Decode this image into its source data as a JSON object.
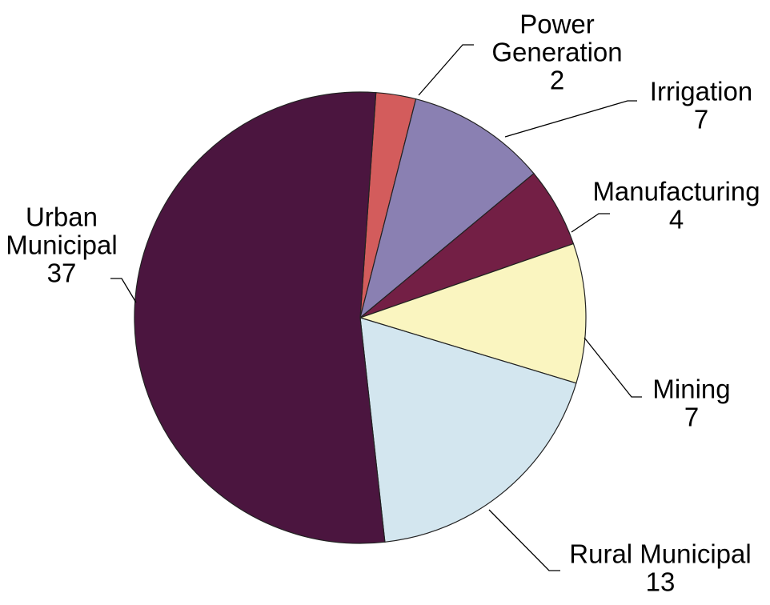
{
  "chart_data": {
    "type": "pie",
    "title": "",
    "start_angle_deg": 86,
    "direction": "clockwise",
    "slices": [
      {
        "label_lines": [
          "Power",
          "Generation"
        ],
        "value": 2,
        "value_label": "2",
        "color": "#D35C5C"
      },
      {
        "label_lines": [
          "Irrigation"
        ],
        "value": 7,
        "value_label": "7",
        "color": "#8A80B2"
      },
      {
        "label_lines": [
          "Manufacturing"
        ],
        "value": 4,
        "value_label": "4",
        "color": "#731F45"
      },
      {
        "label_lines": [
          "Mining"
        ],
        "value": 7,
        "value_label": "7",
        "color": "#FAF5C0"
      },
      {
        "label_lines": [
          "Rural Municipal"
        ],
        "value": 13,
        "value_label": "13",
        "color": "#D3E6EF"
      },
      {
        "label_lines": [
          "Urban",
          "Municipal"
        ],
        "value": 37,
        "value_label": "37",
        "color": "#4B153F"
      }
    ]
  }
}
